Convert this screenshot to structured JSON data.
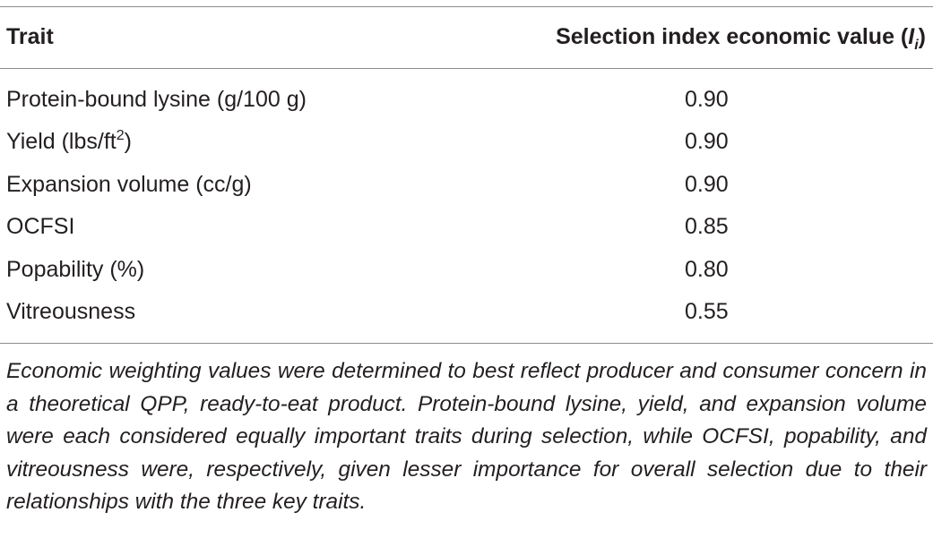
{
  "table": {
    "header": {
      "trait": "Trait",
      "value_prefix": "Selection index economic value (",
      "value_symbol": "I",
      "value_subscript": "i",
      "value_suffix": ")"
    },
    "rows": [
      {
        "trait": "Protein-bound lysine (g/100 g)",
        "trait_sup": "",
        "trait_suffix": "",
        "value": "0.90"
      },
      {
        "trait": "Yield (lbs/ft",
        "trait_sup": "2",
        "trait_suffix": ")",
        "value": "0.90"
      },
      {
        "trait": "Expansion volume (cc/g)",
        "trait_sup": "",
        "trait_suffix": "",
        "value": "0.90"
      },
      {
        "trait": "OCFSI",
        "trait_sup": "",
        "trait_suffix": "",
        "value": "0.85"
      },
      {
        "trait": "Popability (%)",
        "trait_sup": "",
        "trait_suffix": "",
        "value": "0.80"
      },
      {
        "trait": "Vitreousness",
        "trait_sup": "",
        "trait_suffix": "",
        "value": "0.55"
      }
    ],
    "footnote": "Economic weighting values were determined to best reflect producer and consumer concern in a theoretical QPP, ready-to-eat product. Protein-bound lysine, yield, and expansion volume were each considered equally important traits during selection, while OCFSI, popability, and vitreousness were, respectively, given lesser importance for overall selection due to their relationships with the three key traits."
  }
}
